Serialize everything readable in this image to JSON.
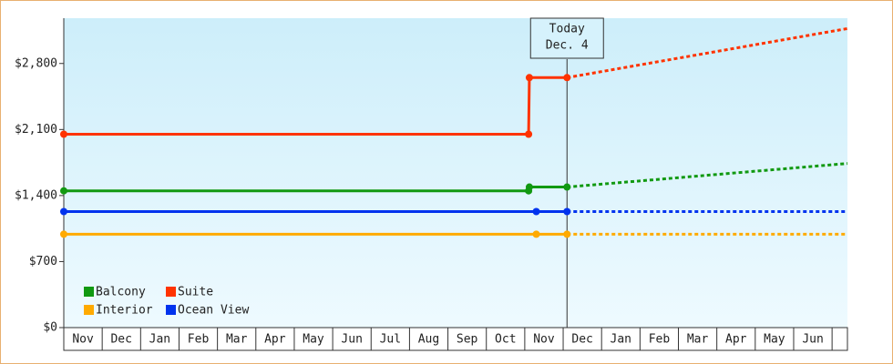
{
  "chart_data": {
    "type": "line",
    "categories": [
      "Nov",
      "Dec",
      "Jan",
      "Feb",
      "Mar",
      "Apr",
      "May",
      "Jun",
      "Jul",
      "Aug",
      "Sep",
      "Oct",
      "Nov",
      "Dec",
      "Jan",
      "Feb",
      "Mar",
      "Apr",
      "May",
      "Jun"
    ],
    "xlim": [
      0,
      20.4
    ],
    "ylim": [
      0,
      3280
    ],
    "yticks": [
      {
        "value": 0,
        "label": "$0"
      },
      {
        "value": 700,
        "label": "$700"
      },
      {
        "value": 1400,
        "label": "$1,400"
      },
      {
        "value": 2100,
        "label": "$2,100"
      },
      {
        "value": 2800,
        "label": "$2,800"
      }
    ],
    "annotation": {
      "x": 13.1,
      "lines": [
        "Today",
        "Dec. 4"
      ]
    },
    "legend_position": "lower left",
    "series": [
      {
        "name": "Balcony",
        "color": "#119911",
        "x": [
          0,
          12.1,
          12.12,
          13.1
        ],
        "values": [
          1450,
          1450,
          1490,
          1490
        ],
        "projection_x": [
          13.1,
          20.4
        ],
        "projection_values": [
          1490,
          1740
        ]
      },
      {
        "name": "Suite",
        "color": "#ff3300",
        "x": [
          0,
          12.1,
          12.12,
          13.1
        ],
        "values": [
          2050,
          2050,
          2650,
          2650
        ],
        "projection_x": [
          13.1,
          20.4
        ],
        "projection_values": [
          2650,
          3170
        ]
      },
      {
        "name": "Interior",
        "color": "#ffaa00",
        "x": [
          0,
          12.3,
          13.1
        ],
        "values": [
          990,
          990,
          990
        ],
        "projection_x": [
          13.1,
          20.4
        ],
        "projection_values": [
          990,
          990
        ]
      },
      {
        "name": "Ocean View",
        "color": "#0033ee",
        "x": [
          0,
          12.3,
          13.1
        ],
        "values": [
          1230,
          1230,
          1230
        ],
        "projection_x": [
          13.1,
          20.4
        ],
        "projection_values": [
          1230,
          1230
        ]
      }
    ]
  }
}
